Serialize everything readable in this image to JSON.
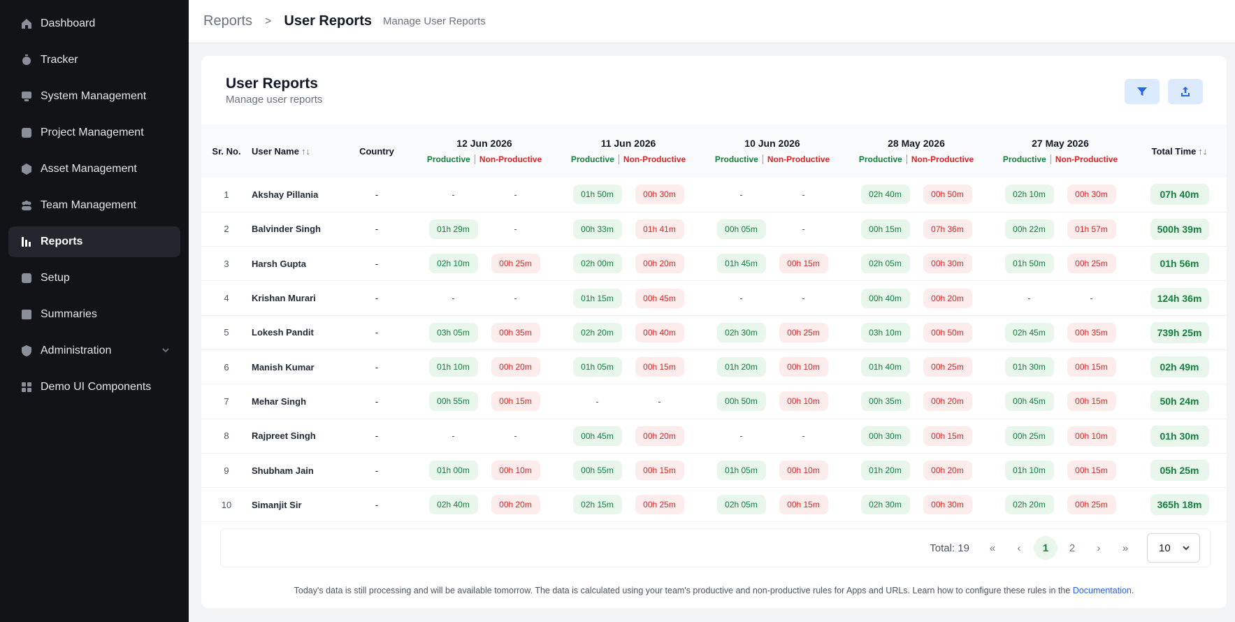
{
  "sidebar": {
    "items": [
      {
        "label": "Dashboard",
        "icon": "home-icon"
      },
      {
        "label": "Tracker",
        "icon": "stopwatch-icon"
      },
      {
        "label": "System Management",
        "icon": "system-icon"
      },
      {
        "label": "Project Management",
        "icon": "project-icon"
      },
      {
        "label": "Asset Management",
        "icon": "asset-icon"
      },
      {
        "label": "Team Management",
        "icon": "team-icon"
      },
      {
        "label": "Reports",
        "icon": "bar-chart-icon",
        "active": true
      },
      {
        "label": "Setup",
        "icon": "setup-icon"
      },
      {
        "label": "Summaries",
        "icon": "summaries-icon"
      },
      {
        "label": "Administration",
        "icon": "shield-icon",
        "has_children": true
      },
      {
        "label": "Demo UI Components",
        "icon": "grid-icon"
      }
    ]
  },
  "header": {
    "breadcrumb_root": "Reports",
    "breadcrumb_sep": ">",
    "breadcrumb_current": "User Reports",
    "breadcrumb_sub": "Manage User Reports"
  },
  "card": {
    "title": "User Reports",
    "subtitle": "Manage user reports",
    "filter_icon": "filter-icon",
    "export_icon": "upload-icon"
  },
  "table": {
    "col_sr": "Sr. No.",
    "col_user": "User Name",
    "col_country": "Country",
    "col_total": "Total Time",
    "sort_glyph": "↑↓",
    "productive_label": "Productive",
    "nonproductive_label": "Non-Productive",
    "dates": [
      "12 Jun 2026",
      "11 Jun 2026",
      "10 Jun 2026",
      "28 May 2026",
      "27 May 2026"
    ],
    "rows": [
      {
        "sr": "1",
        "name": "Akshay Pillania",
        "country": "-",
        "days": [
          [
            "-",
            "-"
          ],
          [
            "01h 50m",
            "00h 30m"
          ],
          [
            "-",
            "-"
          ],
          [
            "02h 40m",
            "00h 50m"
          ],
          [
            "02h 10m",
            "00h 30m"
          ]
        ],
        "total": "07h 40m"
      },
      {
        "sr": "2",
        "name": "Balvinder Singh",
        "country": "-",
        "days": [
          [
            "01h 29m",
            "-"
          ],
          [
            "00h 33m",
            "01h 41m"
          ],
          [
            "00h 05m",
            "-"
          ],
          [
            "00h 15m",
            "07h 36m"
          ],
          [
            "00h 22m",
            "01h 57m"
          ]
        ],
        "total": "500h 39m"
      },
      {
        "sr": "3",
        "name": "Harsh Gupta",
        "country": "-",
        "days": [
          [
            "02h 10m",
            "00h 25m"
          ],
          [
            "02h 00m",
            "00h 20m"
          ],
          [
            "01h 45m",
            "00h 15m"
          ],
          [
            "02h 05m",
            "00h 30m"
          ],
          [
            "01h 50m",
            "00h 25m"
          ]
        ],
        "total": "01h 56m"
      },
      {
        "sr": "4",
        "name": "Krishan Murari",
        "country": "-",
        "days": [
          [
            "-",
            "-"
          ],
          [
            "01h 15m",
            "00h 45m"
          ],
          [
            "-",
            "-"
          ],
          [
            "00h 40m",
            "00h 20m"
          ],
          [
            "-",
            "-"
          ]
        ],
        "total": "124h 36m"
      },
      {
        "sr": "5",
        "name": "Lokesh Pandit",
        "country": "-",
        "days": [
          [
            "03h 05m",
            "00h 35m"
          ],
          [
            "02h 20m",
            "00h 40m"
          ],
          [
            "02h 30m",
            "00h 25m"
          ],
          [
            "03h 10m",
            "00h 50m"
          ],
          [
            "02h 45m",
            "00h 35m"
          ]
        ],
        "total": "739h 25m"
      },
      {
        "sr": "6",
        "name": "Manish Kumar",
        "country": "-",
        "days": [
          [
            "01h 10m",
            "00h 20m"
          ],
          [
            "01h 05m",
            "00h 15m"
          ],
          [
            "01h 20m",
            "00h 10m"
          ],
          [
            "01h 40m",
            "00h 25m"
          ],
          [
            "01h 30m",
            "00h 15m"
          ]
        ],
        "total": "02h 49m"
      },
      {
        "sr": "7",
        "name": "Mehar Singh",
        "country": "-",
        "days": [
          [
            "00h 55m",
            "00h 15m"
          ],
          [
            "-",
            "-"
          ],
          [
            "00h 50m",
            "00h 10m"
          ],
          [
            "00h 35m",
            "00h 20m"
          ],
          [
            "00h 45m",
            "00h 15m"
          ]
        ],
        "total": "50h 24m"
      },
      {
        "sr": "8",
        "name": "Rajpreet Singh",
        "country": "-",
        "days": [
          [
            "-",
            "-"
          ],
          [
            "00h 45m",
            "00h 20m"
          ],
          [
            "-",
            "-"
          ],
          [
            "00h 30m",
            "00h 15m"
          ],
          [
            "00h 25m",
            "00h 10m"
          ]
        ],
        "total": "01h 30m"
      },
      {
        "sr": "9",
        "name": "Shubham Jain",
        "country": "-",
        "days": [
          [
            "01h 00m",
            "00h 10m"
          ],
          [
            "00h 55m",
            "00h 15m"
          ],
          [
            "01h 05m",
            "00h 10m"
          ],
          [
            "01h 20m",
            "00h 20m"
          ],
          [
            "01h 10m",
            "00h 15m"
          ]
        ],
        "total": "05h 25m"
      },
      {
        "sr": "10",
        "name": "Simanjit Sir",
        "country": "-",
        "days": [
          [
            "02h 40m",
            "00h 20m"
          ],
          [
            "02h 15m",
            "00h 25m"
          ],
          [
            "02h 05m",
            "00h 15m"
          ],
          [
            "02h 30m",
            "00h 30m"
          ],
          [
            "02h 20m",
            "00h 25m"
          ]
        ],
        "total": "365h 18m"
      }
    ]
  },
  "pagination": {
    "total_label": "Total: 19",
    "first": "«",
    "prev": "‹",
    "pages": [
      "1",
      "2"
    ],
    "current": "1",
    "next": "›",
    "last": "»",
    "per_page": "10"
  },
  "footer": {
    "note": "Today's data is still processing and will be available tomorrow. The data is calculated using your team's productive and non-productive rules for Apps and URLs. Learn how to configure these rules in the ",
    "link": "Documentation",
    "end": "."
  }
}
